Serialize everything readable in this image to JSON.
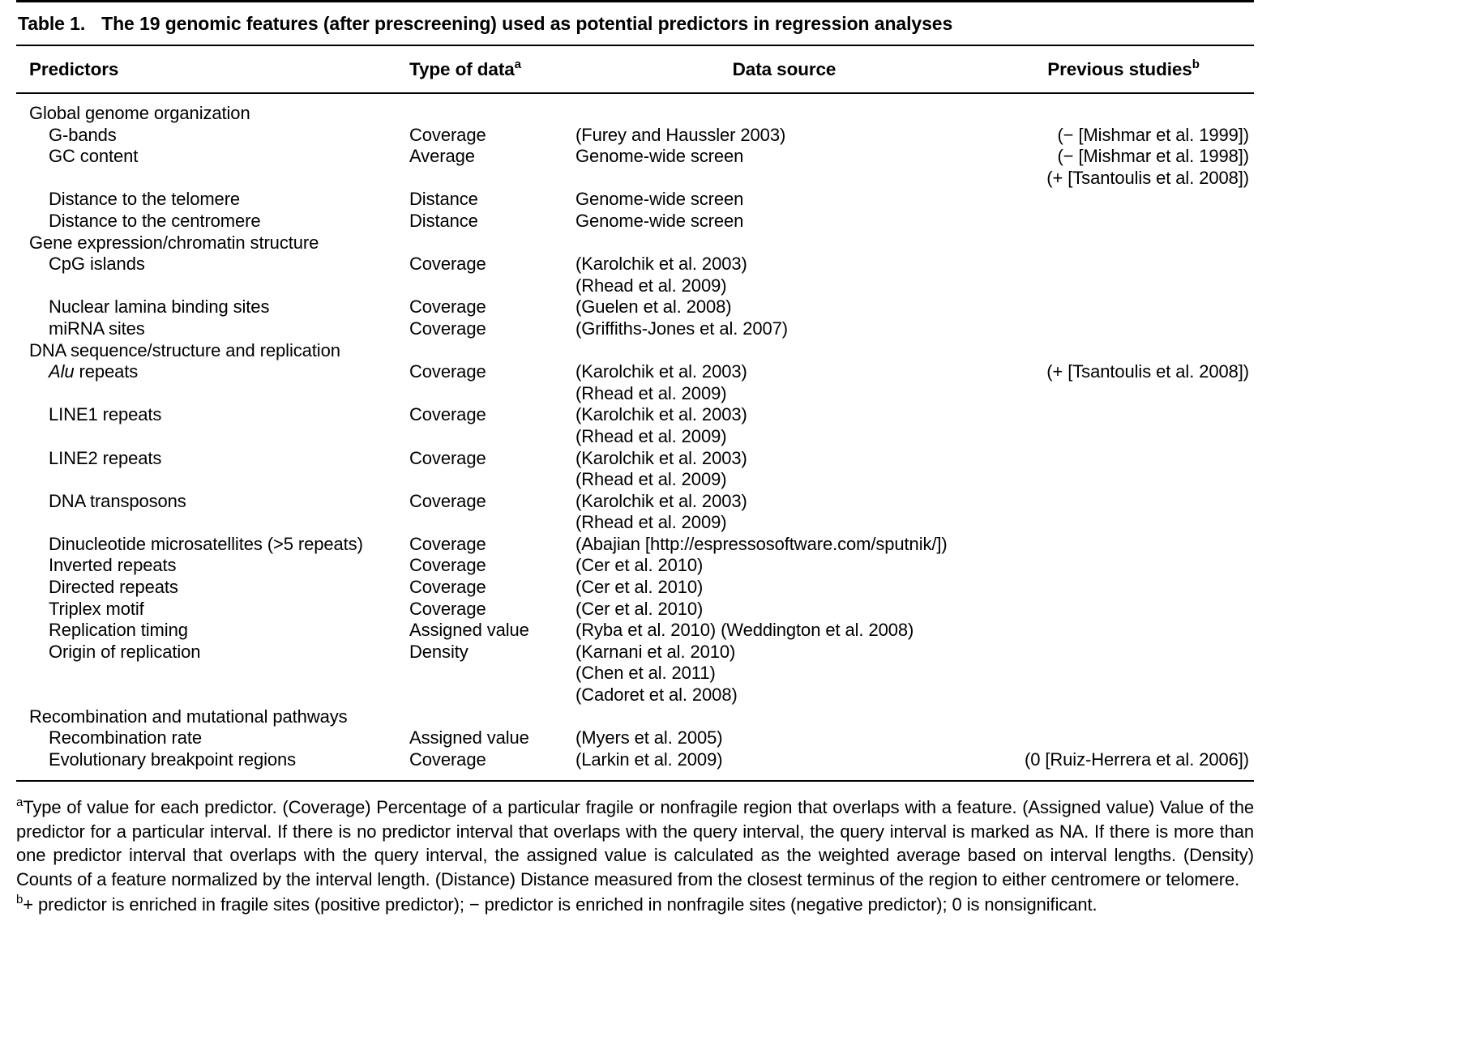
{
  "title": {
    "label": "Table 1.",
    "text": "The 19 genomic features (after prescreening) used as potential predictors in regression analyses"
  },
  "table": {
    "columns": [
      {
        "label": "Predictors",
        "sup": ""
      },
      {
        "label": "Type of data",
        "sup": "a"
      },
      {
        "label": "Data source",
        "sup": ""
      },
      {
        "label": "Previous studies",
        "sup": "b"
      }
    ],
    "sections": [
      {
        "header": "Global genome organization",
        "rows": [
          {
            "predictor": "G-bands",
            "type": "Coverage",
            "source": [
              "(Furey and Haussler 2003)"
            ],
            "previous": [
              "(− [Mishmar et al. 1999])"
            ]
          },
          {
            "predictor": "GC content",
            "type": "Average",
            "source": [
              "Genome-wide screen"
            ],
            "previous": [
              "(− [Mishmar et al. 1998])",
              "(+ [Tsantoulis et al. 2008])"
            ]
          },
          {
            "predictor": "Distance to the telomere",
            "type": "Distance",
            "source": [
              "Genome-wide screen"
            ],
            "previous": []
          },
          {
            "predictor": "Distance to the centromere",
            "type": "Distance",
            "source": [
              "Genome-wide screen"
            ],
            "previous": []
          }
        ]
      },
      {
        "header": "Gene expression/chromatin structure",
        "rows": [
          {
            "predictor": "CpG islands",
            "type": "Coverage",
            "source": [
              "(Karolchik et al. 2003)",
              "(Rhead et al. 2009)"
            ],
            "previous": []
          },
          {
            "predictor": "Nuclear lamina binding sites",
            "type": "Coverage",
            "source": [
              "(Guelen et al. 2008)"
            ],
            "previous": []
          },
          {
            "predictor": "miRNA sites",
            "type": "Coverage",
            "source": [
              "(Griffiths-Jones et al. 2007)"
            ],
            "previous": []
          }
        ]
      },
      {
        "header": "DNA sequence/structure and replication",
        "rows": [
          {
            "predictor_italic": "Alu",
            "predictor": "repeats",
            "type": "Coverage",
            "source": [
              "(Karolchik et al. 2003)",
              "(Rhead et al. 2009)"
            ],
            "previous": [
              "(+ [Tsantoulis et al. 2008])"
            ]
          },
          {
            "predictor": "LINE1 repeats",
            "type": "Coverage",
            "source": [
              "(Karolchik et al. 2003)",
              "(Rhead et al. 2009)"
            ],
            "previous": []
          },
          {
            "predictor": "LINE2 repeats",
            "type": "Coverage",
            "source": [
              "(Karolchik et al. 2003)",
              "(Rhead et al. 2009)"
            ],
            "previous": []
          },
          {
            "predictor": "DNA transposons",
            "type": "Coverage",
            "source": [
              "(Karolchik et al. 2003)",
              "(Rhead et al. 2009)"
            ],
            "previous": []
          },
          {
            "predictor": "Dinucleotide microsatellites (>5 repeats)",
            "type": "Coverage",
            "source": [
              "(Abajian [http://espressosoftware.com/sputnik/])"
            ],
            "previous": []
          },
          {
            "predictor": "Inverted repeats",
            "type": "Coverage",
            "source": [
              "(Cer et al. 2010)"
            ],
            "previous": []
          },
          {
            "predictor": "Directed repeats",
            "type": "Coverage",
            "source": [
              "(Cer et al. 2010)"
            ],
            "previous": []
          },
          {
            "predictor": "Triplex motif",
            "type": "Coverage",
            "source": [
              "(Cer et al. 2010)"
            ],
            "previous": []
          },
          {
            "predictor": "Replication timing",
            "type": "Assigned value",
            "source": [
              "(Ryba et al. 2010) (Weddington et al. 2008)"
            ],
            "previous": []
          },
          {
            "predictor": "Origin of replication",
            "type": "Density",
            "source": [
              "(Karnani et al. 2010)",
              "(Chen et al. 2011)",
              "(Cadoret et al. 2008)"
            ],
            "previous": []
          }
        ]
      },
      {
        "header": "Recombination and mutational pathways",
        "rows": [
          {
            "predictor": "Recombination rate",
            "type": "Assigned value",
            "source": [
              "(Myers et al. 2005)"
            ],
            "previous": []
          },
          {
            "predictor": "Evolutionary breakpoint regions",
            "type": "Coverage",
            "source": [
              "(Larkin et al. 2009)"
            ],
            "previous": [
              "(0 [Ruiz-Herrera et al. 2006])"
            ]
          }
        ]
      }
    ]
  },
  "footnotes": {
    "a": {
      "marker": "a",
      "text": "Type of value for each predictor. (Coverage) Percentage of a particular fragile or nonfragile region that overlaps with a feature. (Assigned value) Value of the predictor for a particular interval. If there is no predictor interval that overlaps with the query interval, the query interval is marked as NA. If there is more than one predictor interval that overlaps with the query interval, the assigned value is calculated as the weighted average based on interval lengths. (Density) Counts of a feature normalized by the interval length. (Distance) Distance measured from the closest terminus of the region to either centromere or telomere."
    },
    "b": {
      "marker": "b",
      "text": "+ predictor is enriched in fragile sites (positive predictor); − predictor is enriched in nonfragile sites (negative predictor); 0 is nonsignificant."
    }
  }
}
